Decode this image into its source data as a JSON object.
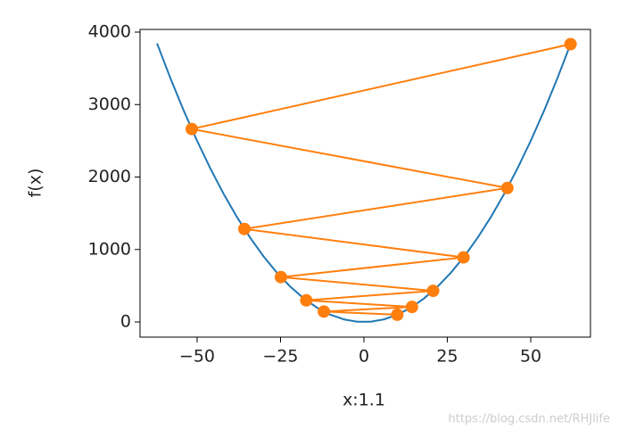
{
  "chart_data": {
    "type": "line",
    "xlabel": "x:1.1",
    "ylabel": "f(x)",
    "xlim": [
      -67.1,
      67.9
    ],
    "ylim": [
      -209,
      4037
    ],
    "xticks": [
      {
        "value": -50,
        "label": "−50"
      },
      {
        "value": -25,
        "label": "−25"
      },
      0,
      25,
      50
    ],
    "yticks": [
      0,
      1000,
      2000,
      3000,
      4000
    ],
    "series": [
      {
        "color": "#1f77b4",
        "markers": false,
        "x": [
          -62,
          -58,
          -54,
          -50,
          -46,
          -42,
          -38,
          -34,
          -30,
          -26,
          -22,
          -18,
          -14,
          -10,
          -6,
          -2,
          2,
          6,
          10,
          14,
          18,
          22,
          26,
          30,
          34,
          38,
          42,
          46,
          50,
          54,
          58,
          62
        ],
        "values": [
          3844,
          3364,
          2916,
          2500,
          2116,
          1764,
          1444,
          1156,
          900,
          676,
          484,
          324,
          196,
          100,
          36,
          4,
          4,
          36,
          100,
          196,
          324,
          484,
          676,
          900,
          1156,
          1444,
          1764,
          2116,
          2500,
          2916,
          3364,
          3844
        ]
      },
      {
        "color": "#ff7f0e",
        "markers": true,
        "x": [
          10,
          -12,
          14.4,
          -17.28,
          20.74,
          -24.88,
          29.86,
          -35.83,
          43.0,
          -51.6,
          61.92
        ],
        "values": [
          100,
          144,
          207.4,
          298.6,
          430,
          619.2,
          891.6,
          1283.9,
          1848.9,
          2662.6,
          3833.9
        ]
      }
    ],
    "watermark": "https://blog.csdn.net/RHJlife"
  }
}
